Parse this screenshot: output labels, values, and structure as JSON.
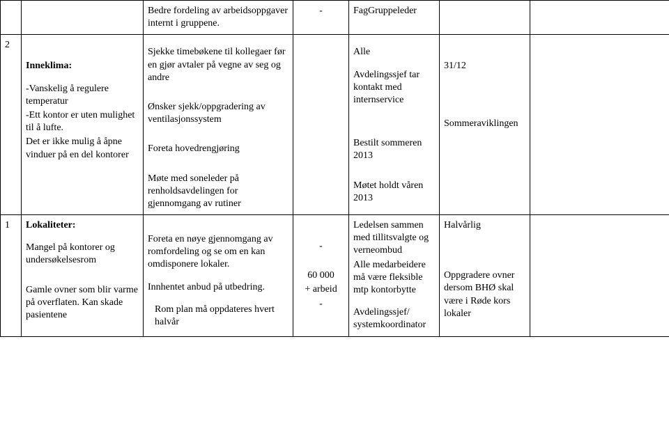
{
  "rows": [
    {
      "c0": "",
      "c1": "",
      "c2a": "Bedre fordeling av arbeidsoppgaver internt i gruppene.",
      "c2b": "Sjekke timebøkene til kollegaer før en gjør avtaler på vegne av seg og andre",
      "c3": "-",
      "c4a": "FagGruppeleder",
      "c4b": "Alle",
      "c5": "",
      "c6": ""
    },
    {
      "c0": "2",
      "c1_head": "Inneklima:",
      "c1_lines": [
        "-Vanskelig å regulere temperatur",
        "-Ett kontor er uten mulighet til å lufte.",
        "Det er ikke mulig å åpne vinduer på en del kontorer"
      ],
      "c2_lines": [
        "Ønsker sjekk/oppgradering av ventilasjonssystem",
        "Foreta hovedrengjøring",
        "Møte med soneleder på renholdsavdelingen for gjennomgang av rutiner"
      ],
      "c3": "",
      "c4_lines": [
        "Avdelingssjef tar kontakt med internservice",
        "Bestilt sommeren 2013",
        "Møtet holdt våren 2013"
      ],
      "c5_lines": [
        "31/12",
        "Sommeraviklingen"
      ],
      "c6": ""
    },
    {
      "c0": "1",
      "c1_head": "Lokaliteter:",
      "c1_lines": [
        "Mangel på kontorer og undersøkelsesrom",
        "Gamle ovner som blir varme på overflaten. Kan skade pasientene"
      ],
      "c2_lines": [
        "Foreta en nøye gjennomgang av romfordeling og se om en kan omdisponere lokaler.",
        "Innhentet anbud på utbedring.",
        "Rom plan må oppdateres hvert halvår"
      ],
      "c3_lines": [
        "-",
        "60 000",
        "+ arbeid",
        "-"
      ],
      "c4_lines": [
        "Ledelsen sammen med tillitsvalgte og verneombud",
        "Alle medarbeidere må være fleksible mtp kontorbytte",
        "Avdelingssjef/ systemkoordinator"
      ],
      "c5_lines": [
        "Halvårlig",
        "Oppgradere ovner dersom BHØ skal være i Røde kors lokaler"
      ],
      "c6": ""
    }
  ]
}
